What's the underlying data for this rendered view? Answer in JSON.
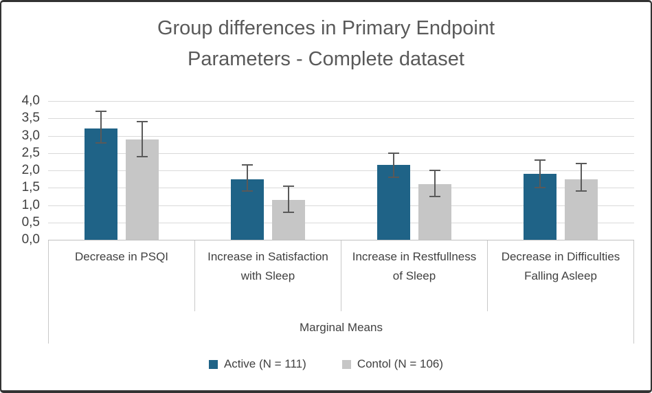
{
  "chart_data": {
    "type": "bar",
    "title": "Group differences in Primary Endpoint Parameters - Complete dataset",
    "xlabel": "Marginal Means",
    "ylabel": "",
    "categories": [
      "Decrease in PSQI",
      "Increase in Satisfaction with Sleep",
      "Increase in Restfullness of Sleep",
      "Decrease in Difficulties Falling Asleep"
    ],
    "series": [
      {
        "name": "Active (N = 111)",
        "color": "#1F6387",
        "values": [
          3.2,
          1.75,
          2.15,
          1.9
        ],
        "error_low": [
          2.8,
          1.4,
          1.8,
          1.5
        ],
        "error_high": [
          3.7,
          2.15,
          2.5,
          2.3
        ]
      },
      {
        "name": "Contol (N = 106)",
        "color": "#C6C6C6",
        "values": [
          2.9,
          1.15,
          1.6,
          1.75
        ],
        "error_low": [
          2.4,
          0.8,
          1.25,
          1.4
        ],
        "error_high": [
          3.4,
          1.55,
          2.0,
          2.2
        ]
      }
    ],
    "ylim": [
      0,
      4
    ],
    "ytick_step": 0.5,
    "ytick_labels": [
      "0,0",
      "0,5",
      "1,0",
      "1,5",
      "2,0",
      "2,5",
      "3,0",
      "3,5",
      "4,0"
    ],
    "grid": true,
    "legend_position": "bottom",
    "decimal_separator": ",",
    "colors": {
      "gridline": "#D9D9D9",
      "axis_line": "#BFBFBF",
      "error_bar": "#595959",
      "title_text": "#595959",
      "axis_text": "#404040",
      "frame_border": "#333333",
      "category_box_border": "#C9C9C9"
    }
  }
}
